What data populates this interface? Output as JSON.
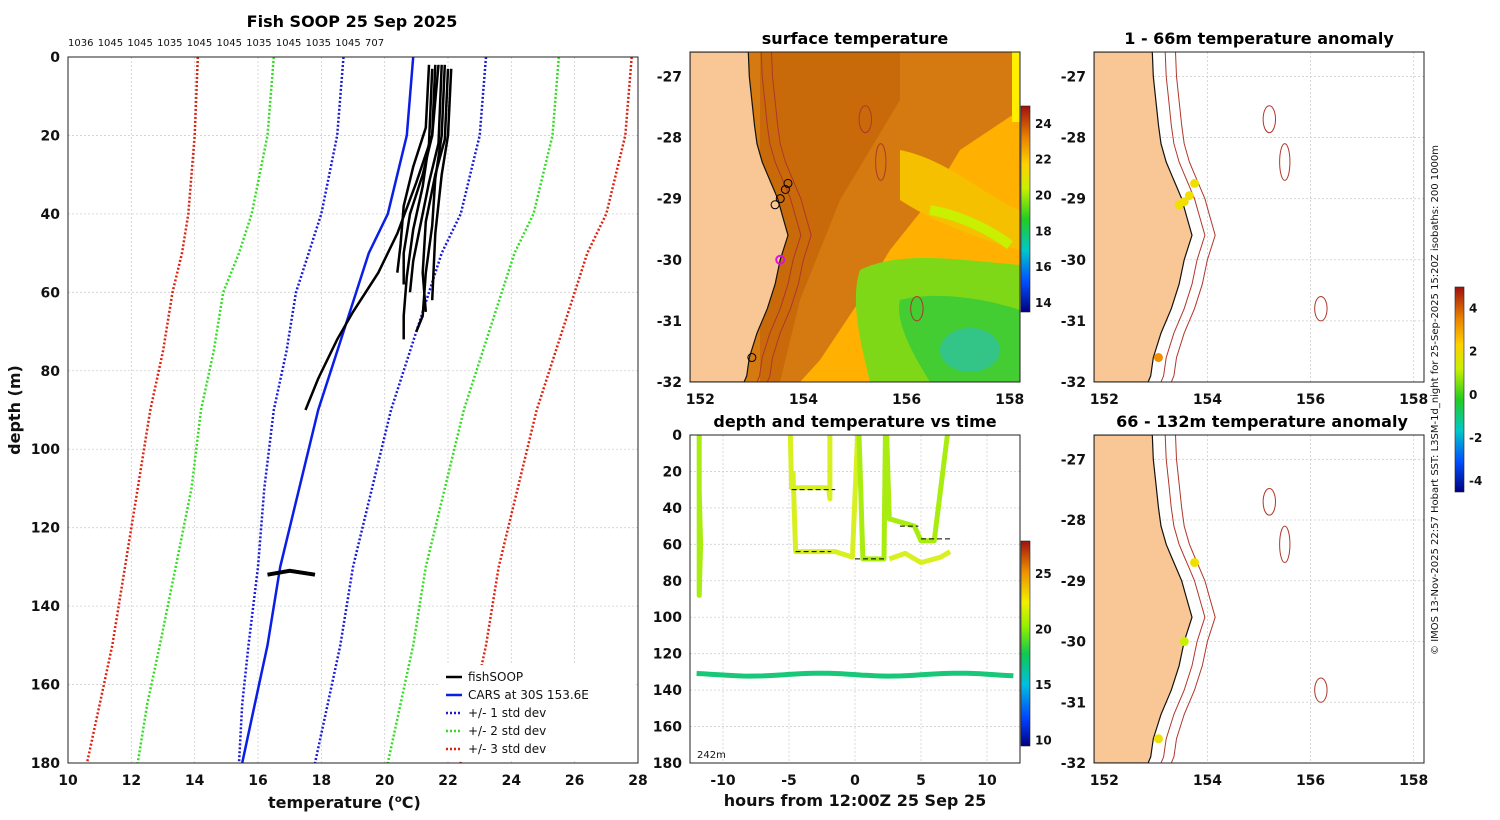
{
  "figure": {
    "credit": "© IMOS 13-Nov-2025 22:57 Hobart SST: L3SM-1d_night for 25-Sep-2025 15:20Z isobaths: 200  1000m",
    "colors": {
      "land": "#f9c795",
      "coast": "#111111",
      "isobath": "#b0362a",
      "cars": "#0a1ee8",
      "std1": "#1a1ad8",
      "std2": "#33dd22",
      "std3": "#dd2211",
      "fishsoop": "#000000"
    }
  },
  "chart_data": [
    {
      "id": "profile",
      "type": "line",
      "title": "Fish SOOP 25 Sep 2025",
      "count_labels": [
        "1036",
        "1045",
        "1045",
        "1035",
        "1045",
        "1045",
        "1035",
        "1045",
        "1035",
        "1045",
        "707"
      ],
      "xlabel": "temperature (",
      "xlabel_sup": "o",
      "xlabel_end": "C)",
      "ylabel": "depth (m)",
      "xlim": [
        10,
        28
      ],
      "ylim": [
        0,
        180
      ],
      "xticks": [
        10,
        12,
        14,
        16,
        18,
        20,
        22,
        24,
        26,
        28
      ],
      "yticks": [
        0,
        20,
        40,
        60,
        80,
        100,
        120,
        140,
        160,
        180
      ],
      "cars_x": [
        20.9,
        20.7,
        20.1,
        19.5,
        19.1,
        18.5,
        17.9,
        17.3,
        16.7,
        16.3,
        15.9,
        15.5
      ],
      "cars_y": [
        0,
        20,
        40,
        50,
        60,
        75,
        90,
        110,
        130,
        150,
        165,
        180
      ],
      "legend": [
        "fishSOOP",
        "CARS at 30S 153.6E",
        "+/- 1 std dev",
        "+/- 2 std dev",
        "+/- 3 std dev"
      ],
      "series": [
        {
          "name": "CARS at 30S 153.6E",
          "color": "#0a1ee8",
          "dash": false
        },
        {
          "name": "+/- 1 std dev",
          "color": "#1a1ad8",
          "dash": true,
          "offset": 2.3,
          "x_left": [
            18.7,
            18.5,
            18.0,
            17.6,
            17.2,
            16.9,
            16.5,
            16.2,
            16.0,
            15.7,
            15.5,
            15.4
          ]
        },
        {
          "name": "+/- 2 std dev",
          "color": "#33dd22",
          "dash": true,
          "offset": 4.6,
          "x_left": [
            16.5,
            16.3,
            15.8,
            15.4,
            14.9,
            14.6,
            14.2,
            13.9,
            13.4,
            12.9,
            12.5,
            12.2
          ]
        },
        {
          "name": "+/- 3 std dev",
          "color": "#dd2211",
          "dash": true,
          "offset": 6.9,
          "x_left": [
            14.1,
            14.0,
            13.8,
            13.6,
            13.3,
            13.0,
            12.6,
            12.2,
            11.8,
            11.4,
            11.0,
            10.6
          ]
        }
      ],
      "fish_profiles": [
        {
          "x": [
            21.6,
            21.5,
            21.2,
            20.8,
            20.6,
            20.6
          ],
          "y": [
            2,
            20,
            30,
            40,
            50,
            58
          ]
        },
        {
          "x": [
            21.8,
            21.7,
            21.4,
            21.1,
            20.9,
            20.8
          ],
          "y": [
            2,
            22,
            32,
            44,
            52,
            60
          ]
        },
        {
          "x": [
            22.0,
            21.9,
            21.6,
            21.3,
            21.2,
            21.3
          ],
          "y": [
            3,
            21,
            30,
            42,
            55,
            65
          ]
        },
        {
          "x": [
            21.4,
            21.3,
            20.9,
            20.6,
            20.5,
            20.4
          ],
          "y": [
            2,
            18,
            28,
            38,
            48,
            55
          ]
        },
        {
          "x": [
            21.9,
            21.8,
            21.6,
            21.5,
            21.3,
            21.2,
            21.0
          ],
          "y": [
            2,
            20,
            31,
            43,
            55,
            66,
            70
          ]
        },
        {
          "x": [
            22.1,
            22.0,
            21.8,
            21.6,
            21.5
          ],
          "y": [
            3,
            20,
            30,
            45,
            62
          ]
        },
        {
          "x": [
            21.7,
            21.5,
            21.0,
            20.4,
            19.8,
            19.0,
            18.5,
            17.9,
            17.5
          ],
          "y": [
            2,
            20,
            32,
            45,
            55,
            65,
            72,
            82,
            90
          ]
        },
        {
          "x": [
            21.5,
            21.4,
            21.2,
            20.9,
            20.7,
            20.6,
            20.6
          ],
          "y": [
            3,
            22,
            33,
            44,
            56,
            66,
            72
          ]
        }
      ],
      "fish_bottom": {
        "x": [
          16.3,
          17.0,
          17.8
        ],
        "y": [
          132,
          131,
          132
        ]
      }
    },
    {
      "id": "sst_map",
      "type": "heatmap",
      "title": "surface temperature",
      "xticks": [
        152,
        154,
        156,
        158
      ],
      "yticks": [
        -27,
        -28,
        -29,
        -30,
        -31,
        -32
      ],
      "xlim": [
        151.8,
        158.2
      ],
      "ylim": [
        -32,
        -26.6
      ],
      "colorbar_ticks": [
        14,
        16,
        18,
        20,
        22,
        24
      ],
      "colorbar_range": [
        13.5,
        25.0
      ]
    },
    {
      "id": "anom_66",
      "type": "scatter",
      "title": "1 - 66m temperature anomaly",
      "xticks": [
        152,
        154,
        156,
        158
      ],
      "yticks": [
        -27,
        -28,
        -29,
        -30,
        -31,
        -32
      ],
      "xlim": [
        151.8,
        158.2
      ],
      "ylim": [
        -32,
        -26.6
      ],
      "points": [
        {
          "x": 153.75,
          "y": -28.75,
          "v": 2.5
        },
        {
          "x": 153.65,
          "y": -28.95,
          "v": 2.2
        },
        {
          "x": 153.55,
          "y": -29.05,
          "v": 2.4
        },
        {
          "x": 153.45,
          "y": -29.1,
          "v": 2.3
        },
        {
          "x": 153.05,
          "y": -31.6,
          "v": 3.5
        }
      ],
      "colorbar_ticks": [
        4,
        2,
        0,
        -2,
        -4
      ],
      "colorbar_range": [
        -4.5,
        5.0
      ]
    },
    {
      "id": "anom_132",
      "type": "scatter",
      "title": "66 - 132m temperature anomaly",
      "xticks": [
        152,
        154,
        156,
        158
      ],
      "yticks": [
        -27,
        -28,
        -29,
        -30,
        -31,
        -32
      ],
      "xlim": [
        151.8,
        158.2
      ],
      "ylim": [
        -32,
        -26.6
      ],
      "points": [
        {
          "x": 153.75,
          "y": -28.7,
          "v": 2.4
        },
        {
          "x": 153.55,
          "y": -30.0,
          "v": 0.3
        },
        {
          "x": 153.05,
          "y": -31.6,
          "v": 2.4
        }
      ]
    },
    {
      "id": "depth_time",
      "type": "scatter",
      "title": "depth and temperature vs time",
      "xlabel": "hours from 12:00Z 25 Sep 25",
      "xlim": [
        -12.5,
        12.5
      ],
      "ylim": [
        0,
        180
      ],
      "xticks": [
        -10,
        -5,
        0,
        5,
        10
      ],
      "yticks": [
        0,
        20,
        40,
        60,
        80,
        100,
        120,
        140,
        160,
        180
      ],
      "bottom_note": "242m",
      "colorbar_ticks": [
        10,
        15,
        20,
        25
      ],
      "colorbar_range": [
        9.5,
        28.0
      ],
      "deep_track_temp": 18.6,
      "tracks": [
        {
          "x": [
            -11.8,
            -11.8,
            -11.7,
            -11.8,
            -11.8
          ],
          "y": [
            0,
            30,
            60,
            88,
            0
          ],
          "t": 21
        },
        {
          "x": [
            -4.9,
            -4.8,
            -2.0,
            -1.9,
            -1.9
          ],
          "y": [
            0,
            29,
            29,
            35,
            0
          ],
          "t": 21.5
        },
        {
          "x": [
            -4.7,
            -4.5,
            -1.5,
            -0.2,
            0.2
          ],
          "y": [
            20,
            64,
            64,
            67,
            0
          ],
          "t": 21.3
        },
        {
          "x": [
            0.3,
            0.6,
            2.2,
            2.3
          ],
          "y": [
            0,
            68,
            68,
            0
          ],
          "t": 21.0
        },
        {
          "x": [
            2.4,
            2.6,
            4.5,
            5.0,
            6.0,
            7.0
          ],
          "y": [
            0,
            46,
            50,
            58,
            58,
            0
          ],
          "t": 21.2
        },
        {
          "x": [
            2.6,
            3.8,
            5.0,
            6.5,
            7.2
          ],
          "y": [
            68,
            65,
            70,
            67,
            64
          ],
          "t": 21.5
        }
      ]
    }
  ]
}
